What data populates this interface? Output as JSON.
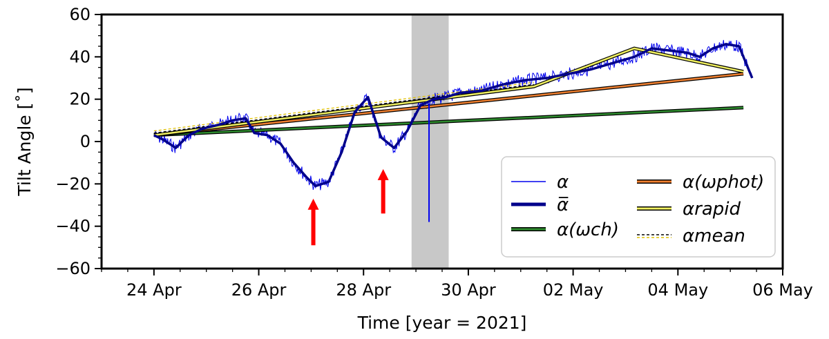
{
  "chart_data": {
    "type": "line",
    "xlabel": "Time [year = 2021]",
    "ylabel": "Tilt Angle [˚]",
    "xlim": [
      "2021-04-23T00:00",
      "2021-05-06T00:00"
    ],
    "ylim": [
      -60,
      60
    ],
    "x_tick_labels": [
      "24 Apr",
      "26 Apr",
      "28 Apr",
      "30 Apr",
      "02 May",
      "04 May",
      "06 May"
    ],
    "x_ticks": [
      "2021-04-24T00:00",
      "2021-04-26T00:00",
      "2021-04-28T00:00",
      "2021-04-30T00:00",
      "2021-05-02T00:00",
      "2021-05-04T00:00",
      "2021-05-06T00:00"
    ],
    "y_ticks": [
      -60,
      -40,
      -20,
      0,
      20,
      40,
      60
    ],
    "grid": false,
    "legend_position": "lower-right",
    "shaded_interval": [
      "2021-04-28T22:00",
      "2021-04-29T15:00"
    ],
    "annotations": [
      {
        "type": "arrow",
        "color": "#ff0000",
        "x": "2021-04-27T01:00",
        "y_tail": -49,
        "y_head": -27
      },
      {
        "type": "arrow",
        "color": "#ff0000",
        "x": "2021-04-28T09:00",
        "y_tail": -34,
        "y_head": -13
      }
    ],
    "series": [
      {
        "legend": "α",
        "color": "#0000ee",
        "style": "noisy",
        "x": [
          "2021-04-24T00:00",
          "2021-04-24T04:00",
          "2021-04-24T10:00",
          "2021-04-24T16:00",
          "2021-04-24T22:00",
          "2021-04-25T06:00",
          "2021-04-25T12:00",
          "2021-04-25T18:00",
          "2021-04-25T22:00",
          "2021-04-26T04:00",
          "2021-04-26T10:00",
          "2021-04-26T16:00",
          "2021-04-26T22:00",
          "2021-04-27T02:00",
          "2021-04-27T08:00",
          "2021-04-27T14:00",
          "2021-04-27T20:00",
          "2021-04-28T02:00",
          "2021-04-28T08:00",
          "2021-04-28T14:00",
          "2021-04-28T20:00",
          "2021-04-29T02:00",
          "2021-04-29T08:00",
          "2021-04-29T14:00",
          "2021-04-29T20:00",
          "2021-04-30T06:00",
          "2021-04-30T16:00",
          "2021-05-01T02:00",
          "2021-05-01T12:00",
          "2021-05-01T22:00",
          "2021-05-02T08:00",
          "2021-05-02T18:00",
          "2021-05-03T04:00",
          "2021-05-03T12:00",
          "2021-05-03T20:00",
          "2021-05-04T04:00",
          "2021-05-04T10:00",
          "2021-05-04T16:00",
          "2021-05-04T22:00",
          "2021-05-05T04:00",
          "2021-05-05T10:00"
        ],
        "y": [
          3,
          1,
          -3,
          3,
          6,
          8,
          10,
          11,
          4,
          3,
          -1,
          -10,
          -17,
          -21,
          -19,
          -5,
          14,
          21,
          2,
          -3,
          5,
          17,
          20,
          21,
          23,
          24,
          27,
          29,
          30,
          32,
          34,
          37,
          40,
          44,
          43,
          42,
          40,
          44,
          46,
          45,
          30
        ]
      },
      {
        "legend": "α̅",
        "color": "#00008b",
        "style": "smooth",
        "x": [
          "2021-04-24T00:00",
          "2021-04-24T04:00",
          "2021-04-24T10:00",
          "2021-04-24T16:00",
          "2021-04-24T22:00",
          "2021-04-25T06:00",
          "2021-04-25T12:00",
          "2021-04-25T18:00",
          "2021-04-25T22:00",
          "2021-04-26T04:00",
          "2021-04-26T10:00",
          "2021-04-26T16:00",
          "2021-04-26T22:00",
          "2021-04-27T02:00",
          "2021-04-27T08:00",
          "2021-04-27T14:00",
          "2021-04-27T20:00",
          "2021-04-28T02:00",
          "2021-04-28T08:00",
          "2021-04-28T14:00",
          "2021-04-28T20:00",
          "2021-04-29T02:00",
          "2021-04-29T08:00",
          "2021-04-29T14:00",
          "2021-04-29T20:00",
          "2021-04-30T06:00",
          "2021-04-30T16:00",
          "2021-05-01T02:00",
          "2021-05-01T12:00",
          "2021-05-01T22:00",
          "2021-05-02T08:00",
          "2021-05-02T18:00",
          "2021-05-03T04:00",
          "2021-05-03T12:00",
          "2021-05-03T20:00",
          "2021-05-04T04:00",
          "2021-05-04T10:00",
          "2021-05-04T16:00",
          "2021-05-04T22:00",
          "2021-05-05T04:00",
          "2021-05-05T10:00"
        ],
        "y": [
          3,
          1,
          -3,
          3,
          6,
          8,
          10,
          11,
          4,
          3,
          -1,
          -10,
          -17,
          -21,
          -19,
          -5,
          14,
          21,
          2,
          -3,
          5,
          17,
          20,
          21,
          23,
          24,
          27,
          29,
          30,
          32,
          34,
          37,
          40,
          44,
          43,
          42,
          40,
          44,
          46,
          45,
          30
        ]
      },
      {
        "legend": "α(ωch)",
        "color": "#2e8b2e",
        "style": "outlined",
        "x": [
          "2021-04-24T00:00",
          "2021-05-05T06:00"
        ],
        "y": [
          3,
          16
        ]
      },
      {
        "legend": "α(ωphot)",
        "color": "#f08030",
        "style": "outlined",
        "x": [
          "2021-04-24T00:00",
          "2021-05-05T06:00"
        ],
        "y": [
          3,
          32
        ]
      },
      {
        "legend": "αrapid",
        "color": "#f0f060",
        "style": "outlined",
        "x": [
          "2021-04-24T00:00",
          "2021-05-01T06:00",
          "2021-05-03T04:00",
          "2021-05-05T06:00"
        ],
        "y": [
          3,
          26,
          44,
          33
        ]
      },
      {
        "legend": "αmean",
        "color": "#e0c000",
        "style": "dashed",
        "x": [
          "2021-04-24T00:00",
          "2021-05-01T06:00"
        ],
        "y": [
          4,
          27
        ]
      }
    ]
  }
}
